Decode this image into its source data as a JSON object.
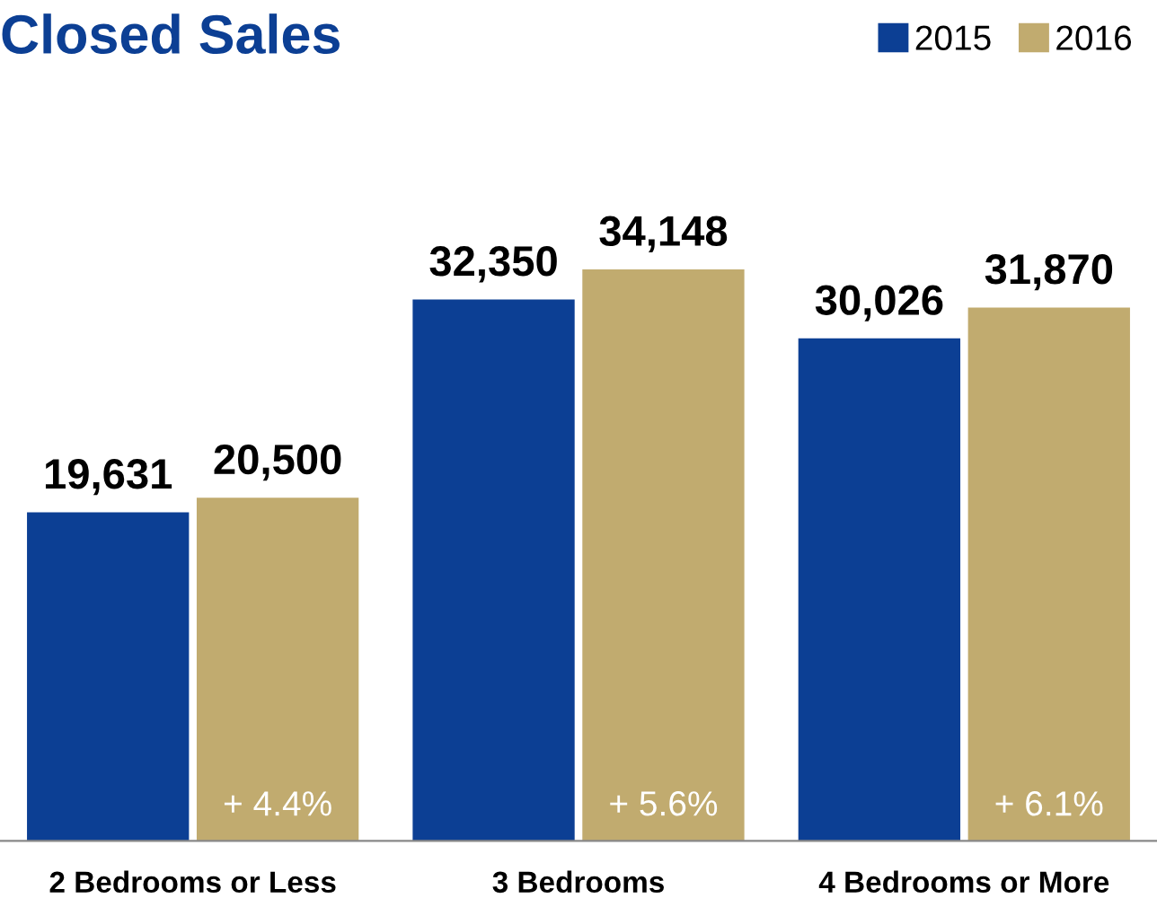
{
  "chart_data": {
    "type": "bar",
    "title": "Closed Sales",
    "categories": [
      "2 Bedrooms or Less",
      "3 Bedrooms",
      "4 Bedrooms or More"
    ],
    "series": [
      {
        "name": "2015",
        "color": "#0c3f94",
        "values": [
          19631,
          32350,
          30026
        ],
        "value_labels": [
          "19,631",
          "32,350",
          "30,026"
        ]
      },
      {
        "name": "2016",
        "color": "#c1ab6f",
        "values": [
          20500,
          34148,
          31870
        ],
        "value_labels": [
          "20,500",
          "34,148",
          "31,870"
        ]
      }
    ],
    "legend": "top right",
    "grid": false,
    "annotations": [
      "+ 4.4%",
      "+ 5.6%",
      "+ 6.1%"
    ]
  }
}
